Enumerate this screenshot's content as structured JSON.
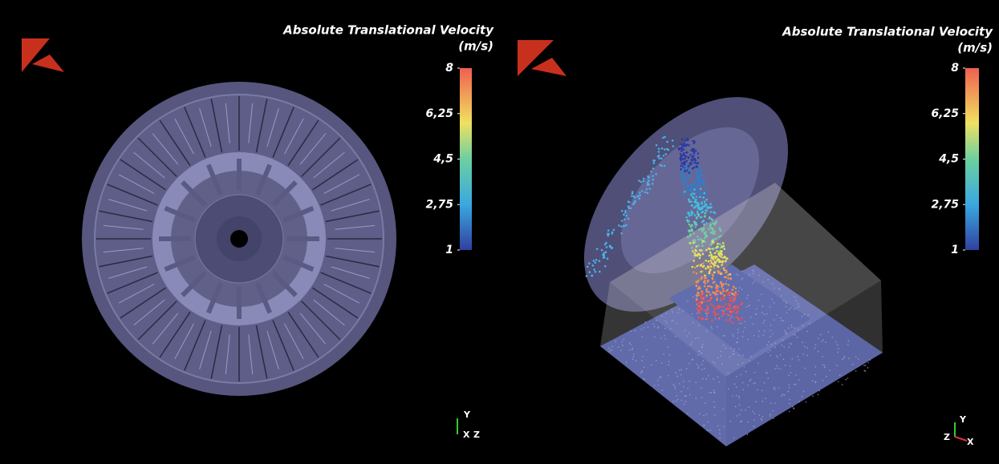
{
  "panels": [
    {
      "colorbar": {
        "title": "Absolute Translational Velocity",
        "unit": "(m/s)",
        "range": [
          1,
          8
        ],
        "ticks": [
          8,
          {
            "value": 6.25,
            "label": "6,25"
          },
          {
            "value": 4.5,
            "label": "4,5"
          },
          {
            "value": 2.75,
            "label": "2,75"
          },
          1
        ]
      },
      "axes": [
        "Y",
        "X",
        "Z"
      ]
    },
    {
      "colorbar": {
        "title": "Absolute Translational Velocity",
        "unit": "(m/s)",
        "range": [
          1,
          8
        ],
        "ticks": [
          8,
          {
            "value": 6.25,
            "label": "6,25"
          },
          {
            "value": 4.5,
            "label": "4,5"
          },
          {
            "value": 2.75,
            "label": "2,75"
          },
          1
        ]
      },
      "axes": [
        "Y",
        "Z",
        "X"
      ]
    }
  ]
}
